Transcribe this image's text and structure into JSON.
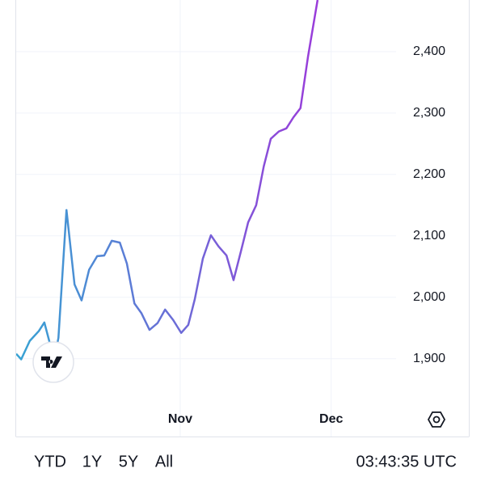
{
  "chart_data": {
    "type": "line",
    "x": [
      0,
      1.0,
      2.7,
      4.5,
      5.6,
      6.7,
      7.7,
      8.4,
      10.0,
      11.6,
      13.0,
      14.5,
      16.1,
      17.5,
      19.0,
      20.6,
      22.0,
      23.5,
      24.9,
      26.5,
      28.1,
      29.6,
      31.2,
      32.8,
      34.2,
      35.5,
      37.1,
      38.7,
      40.2,
      41.8,
      43.2,
      44.7,
      46.1,
      47.7,
      49.2,
      50.6,
      52.2,
      53.7,
      55.1,
      56.5,
      58.0,
      59.9
    ],
    "series": [
      {
        "values": [
          1908,
          1899,
          1929,
          1945,
          1959,
          1925,
          1905,
          1934,
          2142,
          2021,
          1995,
          2045,
          2067,
          2068,
          2092,
          2089,
          2055,
          1990,
          1974,
          1947,
          1958,
          1980,
          1963,
          1942,
          1955,
          1997,
          2063,
          2101,
          2083,
          2068,
          2028,
          2076,
          2122,
          2150,
          2213,
          2258,
          2270,
          2275,
          2293,
          2308,
          2392,
          2484
        ],
        "colors": [
          "#37a3d3",
          "#9a3cda"
        ]
      }
    ],
    "xlim": [
      0,
      75.5
    ],
    "xticks": [
      {
        "value": 32.6,
        "label": "Nov"
      },
      {
        "value": 62.6,
        "label": "Dec"
      }
    ],
    "ylim": [
      1826,
      2484
    ],
    "yticks": [
      {
        "value": 1900,
        "label": "1,900"
      },
      {
        "value": 2000,
        "label": "2,000"
      },
      {
        "value": 2100,
        "label": "2,100"
      },
      {
        "value": 2200,
        "label": "2,200"
      },
      {
        "value": 2300,
        "label": "2,300"
      },
      {
        "value": 2400,
        "label": "2,400"
      }
    ],
    "grid": true
  },
  "range_buttons": [
    "YTD",
    "1Y",
    "5Y",
    "All"
  ],
  "clock": "03:43:35 UTC"
}
